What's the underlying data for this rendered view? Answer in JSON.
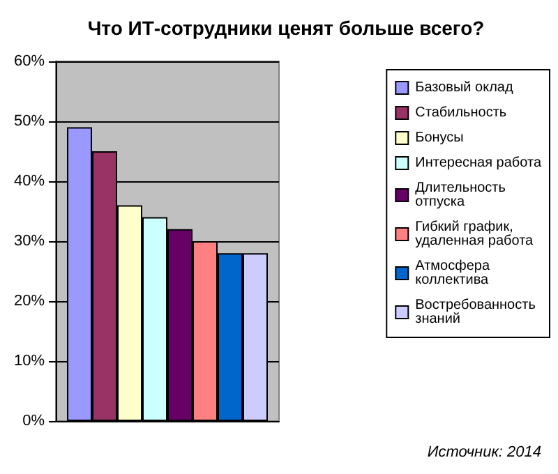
{
  "chart_data": {
    "type": "bar",
    "title": "Что ИТ-сотрудники ценят больше всего?",
    "categories": [
      null
    ],
    "series": [
      {
        "name": "Базовый оклад",
        "color": "#9999ff",
        "values": [
          49
        ]
      },
      {
        "name": "Стабильность",
        "color": "#993366",
        "values": [
          45
        ]
      },
      {
        "name": "Бонусы",
        "color": "#ffffcc",
        "values": [
          36
        ]
      },
      {
        "name": "Интересная работа",
        "color": "#ccffff",
        "values": [
          34
        ]
      },
      {
        "name": "Длительность отпуска",
        "color": "#660066",
        "values": [
          32
        ]
      },
      {
        "name": "Гибкий график, удаленная работа",
        "color": "#ff8080",
        "values": [
          30
        ]
      },
      {
        "name": "Атмосфера коллектива",
        "color": "#0066cc",
        "values": [
          28
        ]
      },
      {
        "name": "Востребованность знаний",
        "color": "#ccccff",
        "values": [
          28
        ]
      }
    ],
    "ylim": [
      0,
      60
    ],
    "yticks": [
      {
        "value": 0,
        "label": "0%"
      },
      {
        "value": 10,
        "label": "10%"
      },
      {
        "value": 20,
        "label": "20%"
      },
      {
        "value": 30,
        "label": "30%"
      },
      {
        "value": 40,
        "label": "40%"
      },
      {
        "value": 50,
        "label": "50%"
      },
      {
        "value": 60,
        "label": "60%"
      }
    ],
    "grid": "y",
    "legend": "right",
    "annotations": [
      "Источник: 2014"
    ]
  }
}
